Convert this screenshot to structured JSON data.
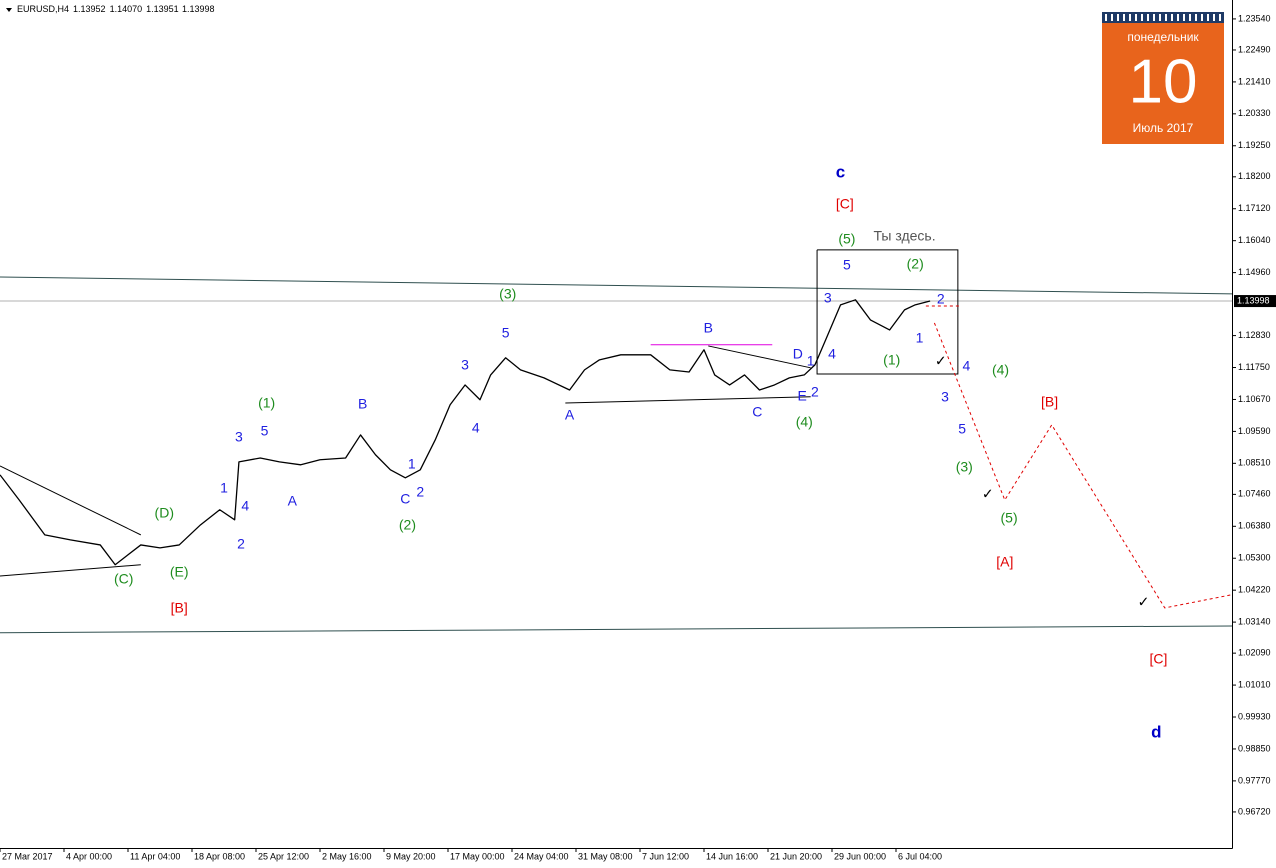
{
  "chart_data": {
    "type": "line",
    "header": {
      "symbol": "EURUSD,H4",
      "ohlc": [
        1.13952,
        {
          "value": 1.1407,
          "label": "1.14070"
        },
        1.13951,
        1.13998
      ]
    },
    "calendar": {
      "weekday": "понедельник",
      "day": 10,
      "month": "Июль 2017"
    },
    "xlim": [
      0,
      577.5
    ],
    "ylim": [
      0.955,
      1.2418
    ],
    "xticks": [
      {
        "value": 0,
        "label": "27 Mar 2017"
      },
      {
        "value": 30,
        "label": "4 Apr 00:00"
      },
      {
        "value": 60,
        "label": "11 Apr 04:00"
      },
      {
        "value": 90,
        "label": "18 Apr 08:00"
      },
      {
        "value": 120,
        "label": "25 Apr 12:00"
      },
      {
        "value": 150,
        "label": "2 May 16:00"
      },
      {
        "value": 180,
        "label": "9 May 20:00"
      },
      {
        "value": 210,
        "label": "17 May 00:00"
      },
      {
        "value": 240,
        "label": "24 May 04:00"
      },
      {
        "value": 270,
        "label": "31 May 08:00"
      },
      {
        "value": 300,
        "label": "7 Jun 12:00"
      },
      {
        "value": 330,
        "label": "14 Jun 16:00"
      },
      {
        "value": 360,
        "label": "21 Jun 20:00"
      },
      {
        "value": 390,
        "label": "29 Jun 00:00"
      },
      {
        "value": 420,
        "label": "6 Jul 04:00"
      }
    ],
    "yticks": [
      {
        "value": 1.2354,
        "label": "1.23540"
      },
      {
        "value": 1.2249,
        "label": "1.22490"
      },
      {
        "value": 1.2141,
        "label": "1.21410"
      },
      {
        "value": 1.2033,
        "label": "1.20330"
      },
      {
        "value": 1.1925,
        "label": "1.19250"
      },
      {
        "value": 1.182,
        "label": "1.18200"
      },
      {
        "value": 1.1712,
        "label": "1.17120"
      },
      {
        "value": 1.1604,
        "label": "1.16040"
      },
      {
        "value": 1.1496,
        "label": "1.14960"
      },
      {
        "value": 1.1283,
        "label": "1.12830"
      },
      {
        "value": 1.1175,
        "label": "1.11750"
      },
      {
        "value": 1.1067,
        "label": "1.10670"
      },
      {
        "value": 1.0959,
        "label": "1.09590"
      },
      {
        "value": 1.0851,
        "label": "1.08510"
      },
      {
        "value": 1.0746,
        "label": "1.07460"
      },
      {
        "value": 1.0638,
        "label": "1.06380"
      },
      {
        "value": 1.053,
        "label": "1.05300"
      },
      {
        "value": 1.0422,
        "label": "1.04220"
      },
      {
        "value": 1.0314,
        "label": "1.03140"
      },
      {
        "value": 1.0209,
        "label": "1.02090"
      },
      {
        "value": 1.0101,
        "label": "1.01010"
      },
      {
        "value": 0.9993,
        "label": "0.99930"
      },
      {
        "value": 0.9885,
        "label": "0.98850"
      },
      {
        "value": 0.9777,
        "label": "0.97770"
      },
      {
        "value": 0.9672,
        "label": "0.96720"
      }
    ],
    "x": [
      0,
      9,
      21,
      33,
      47,
      54,
      66,
      75,
      84,
      94,
      103,
      110,
      112,
      122,
      131,
      141,
      150,
      162,
      169,
      176,
      183,
      190,
      197,
      204,
      211,
      218,
      225,
      230,
      237,
      244,
      255,
      267,
      274,
      281,
      291,
      305,
      314,
      323,
      330,
      335,
      342,
      349,
      356,
      363,
      370,
      377,
      382,
      387,
      394,
      401,
      408,
      417,
      424,
      429,
      436
    ],
    "series": [
      {
        "color": "#000000",
        "values": [
          1.0812,
          1.0727,
          1.0609,
          1.0592,
          1.0575,
          1.0508,
          1.0575,
          1.0565,
          1.0575,
          1.0643,
          1.0694,
          1.066,
          1.0856,
          1.0869,
          1.0856,
          1.0846,
          1.0863,
          1.0869,
          1.0947,
          1.088,
          1.0829,
          1.0802,
          1.0829,
          1.093,
          1.1049,
          1.1116,
          1.1066,
          1.115,
          1.1208,
          1.1167,
          1.114,
          1.1099,
          1.1167,
          1.1201,
          1.1218,
          1.1218,
          1.1167,
          1.116,
          1.1235,
          1.115,
          1.1116,
          1.115,
          1.1099,
          1.1116,
          1.114,
          1.115,
          1.1184,
          1.1268,
          1.1387,
          1.1404,
          1.1336,
          1.1302,
          1.137,
          1.1387,
          1.14
        ]
      }
    ],
    "lines": [
      {
        "color": "#2f4f4f",
        "x": [
          0,
          577.5
        ],
        "y": [
          1.1481,
          1.1424
        ]
      },
      {
        "color": "#2f4f4f",
        "x": [
          0,
          577.5
        ],
        "y": [
          1.0278,
          1.0301
        ]
      },
      {
        "color": "#000000",
        "x": [
          0,
          66
        ],
        "y": [
          1.0842,
          1.0609
        ]
      },
      {
        "color": "#000000",
        "x": [
          0,
          66
        ],
        "y": [
          1.047,
          1.0508
        ]
      },
      {
        "color": "#000000",
        "x": [
          265,
          380
        ],
        "y": [
          1.1055,
          1.1076
        ]
      },
      {
        "color": "#000000",
        "x": [
          332,
          380
        ],
        "y": [
          1.1248,
          1.1174
        ]
      },
      {
        "color": "#e000e0",
        "x": [
          305,
          362
        ],
        "y": [
          1.1252,
          1.1252
        ]
      },
      {
        "color": "#000000",
        "x": [
          383,
          449,
          449,
          383,
          383
        ],
        "y": [
          1.1573,
          1.1573,
          1.1153,
          1.1153,
          1.1573
        ]
      },
      {
        "color": "#e00000",
        "dash": true,
        "x": [
          434,
          450
        ],
        "y": [
          1.1383,
          1.1383
        ]
      },
      {
        "color": "#e00000",
        "dash": true,
        "x": [
          438,
          471,
          493,
          546,
          577
        ],
        "y": [
          1.1326,
          1.0727,
          1.0981,
          1.0362,
          1.0406
        ]
      }
    ],
    "annotations": [
      {
        "text": "(C)",
        "x": 58,
        "y": 1.0457,
        "color": "#1e8c1e"
      },
      {
        "text": "(E)",
        "x": 84,
        "y": 1.0481,
        "color": "#1e8c1e"
      },
      {
        "text": "(D)",
        "x": 77,
        "y": 1.068,
        "color": "#1e8c1e"
      },
      {
        "text": "[B]",
        "x": 84,
        "y": 1.0359,
        "color": "#e00000"
      },
      {
        "text": "1",
        "x": 105,
        "y": 1.0765,
        "color": "#1f1fe0"
      },
      {
        "text": "4",
        "x": 115,
        "y": 1.0704,
        "color": "#1f1fe0"
      },
      {
        "text": "2",
        "x": 113,
        "y": 1.0575,
        "color": "#1f1fe0"
      },
      {
        "text": "3",
        "x": 112,
        "y": 1.0937,
        "color": "#1f1fe0"
      },
      {
        "text": "5",
        "x": 124,
        "y": 1.0957,
        "color": "#1f1fe0"
      },
      {
        "text": "(1)",
        "x": 125,
        "y": 1.1052,
        "color": "#1e8c1e"
      },
      {
        "text": "A",
        "x": 137,
        "y": 1.0721,
        "color": "#1f1fe0"
      },
      {
        "text": "B",
        "x": 170,
        "y": 1.1049,
        "color": "#1f1fe0"
      },
      {
        "text": "1",
        "x": 193,
        "y": 1.0846,
        "color": "#1f1fe0"
      },
      {
        "text": "C",
        "x": 190,
        "y": 1.0727,
        "color": "#1f1fe0"
      },
      {
        "text": "2",
        "x": 197,
        "y": 1.0751,
        "color": "#1f1fe0"
      },
      {
        "text": "(2)",
        "x": 191,
        "y": 1.0639,
        "color": "#1e8c1e"
      },
      {
        "text": "3",
        "x": 218,
        "y": 1.1181,
        "color": "#1f1fe0"
      },
      {
        "text": "4",
        "x": 223,
        "y": 1.0967,
        "color": "#1f1fe0"
      },
      {
        "text": "5",
        "x": 237,
        "y": 1.1289,
        "color": "#1f1fe0"
      },
      {
        "text": "(3)",
        "x": 238,
        "y": 1.1421,
        "color": "#1e8c1e"
      },
      {
        "text": "A",
        "x": 267,
        "y": 1.1011,
        "color": "#1f1fe0"
      },
      {
        "text": "B",
        "x": 332,
        "y": 1.1306,
        "color": "#1f1fe0"
      },
      {
        "text": "C",
        "x": 355,
        "y": 1.1022,
        "color": "#1f1fe0"
      },
      {
        "text": "D",
        "x": 374,
        "y": 1.1218,
        "color": "#1f1fe0"
      },
      {
        "text": "E",
        "x": 376,
        "y": 1.1076,
        "color": "#1f1fe0"
      },
      {
        "text": "1",
        "x": 380,
        "y": 1.1194,
        "color": "#1f1fe0"
      },
      {
        "text": "2",
        "x": 382,
        "y": 1.1089,
        "color": "#1f1fe0"
      },
      {
        "text": "(4)",
        "x": 377,
        "y": 1.0988,
        "color": "#1e8c1e"
      },
      {
        "text": "4",
        "x": 390,
        "y": 1.1218,
        "color": "#1f1fe0"
      },
      {
        "text": "3",
        "x": 388,
        "y": 1.1407,
        "color": "#1f1fe0"
      },
      {
        "text": "5",
        "x": 397,
        "y": 1.1519,
        "color": "#1f1fe0"
      },
      {
        "text": "(5)",
        "x": 397,
        "y": 1.1607,
        "color": "#1e8c1e"
      },
      {
        "text": "Ты здесь.",
        "x": 424,
        "y": 1.1617,
        "color": "#555555"
      },
      {
        "text": "[C]",
        "x": 396,
        "y": 1.1725,
        "color": "#e00000"
      },
      {
        "text": "c",
        "x": 394,
        "y": 1.1833,
        "color": "#0000c8",
        "bold": true
      },
      {
        "text": "(2)",
        "x": 429,
        "y": 1.1522,
        "color": "#1e8c1e"
      },
      {
        "text": "2",
        "x": 441,
        "y": 1.1404,
        "color": "#1f1fe0"
      },
      {
        "text": "1",
        "x": 431,
        "y": 1.1272,
        "color": "#1f1fe0"
      },
      {
        "text": "(1)",
        "x": 418,
        "y": 1.1197,
        "color": "#1e8c1e"
      },
      {
        "text": "4",
        "x": 453,
        "y": 1.1177,
        "color": "#1f1fe0"
      },
      {
        "text": "(4)",
        "x": 469,
        "y": 1.1164,
        "color": "#1e8c1e"
      },
      {
        "text": "3",
        "x": 443,
        "y": 1.1072,
        "color": "#1f1fe0"
      },
      {
        "text": "5",
        "x": 451,
        "y": 1.0964,
        "color": "#1f1fe0"
      },
      {
        "text": "(3)",
        "x": 452,
        "y": 1.0836,
        "color": "#1e8c1e"
      },
      {
        "text": "(5)",
        "x": 473,
        "y": 1.0663,
        "color": "#1e8c1e"
      },
      {
        "text": "[A]",
        "x": 471,
        "y": 1.0514,
        "color": "#e00000"
      },
      {
        "text": "[B]",
        "x": 492,
        "y": 1.1055,
        "color": "#e00000"
      },
      {
        "text": "[C]",
        "x": 543,
        "y": 1.0186,
        "color": "#e00000"
      },
      {
        "text": "d",
        "x": 542,
        "y": 0.9939,
        "color": "#0000c8",
        "bold": true
      },
      {
        "text": "✓",
        "x": 441,
        "y": 1.1194,
        "color": "#000000"
      },
      {
        "text": "✓",
        "x": 463,
        "y": 1.0744,
        "color": "#000000"
      },
      {
        "text": "✓",
        "x": 536,
        "y": 1.0379,
        "color": "#000000"
      }
    ]
  }
}
